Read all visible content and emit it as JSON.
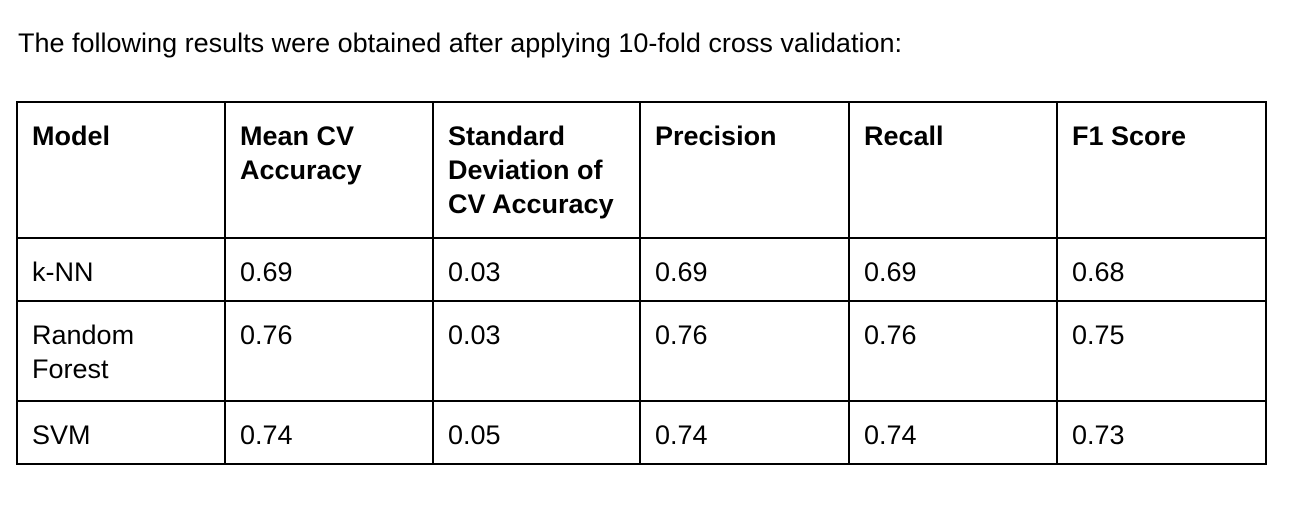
{
  "intro_text": "The following results were obtained after applying 10-fold cross validation:",
  "table": {
    "headers": [
      "Model",
      "Mean CV Accuracy",
      "Standard Deviation of CV Accuracy",
      "Precision",
      "Recall",
      "F1 Score"
    ],
    "rows": [
      [
        "k-NN",
        "0.69",
        "0.03",
        "0.69",
        "0.69",
        "0.68"
      ],
      [
        "Random Forest",
        "0.76",
        "0.03",
        "0.76",
        "0.76",
        "0.75"
      ],
      [
        "SVM",
        "0.74",
        "0.05",
        "0.74",
        "0.74",
        "0.73"
      ]
    ]
  }
}
